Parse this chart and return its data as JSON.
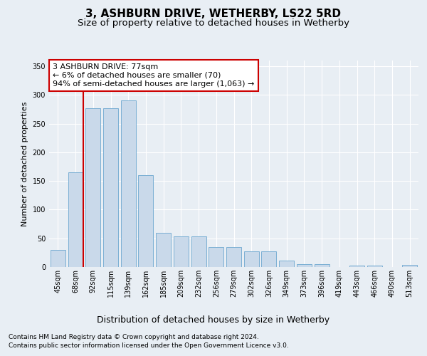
{
  "title": "3, ASHBURN DRIVE, WETHERBY, LS22 5RD",
  "subtitle": "Size of property relative to detached houses in Wetherby",
  "xlabel": "Distribution of detached houses by size in Wetherby",
  "ylabel": "Number of detached properties",
  "categories": [
    "45sqm",
    "68sqm",
    "92sqm",
    "115sqm",
    "139sqm",
    "162sqm",
    "185sqm",
    "209sqm",
    "232sqm",
    "256sqm",
    "279sqm",
    "302sqm",
    "326sqm",
    "349sqm",
    "373sqm",
    "396sqm",
    "419sqm",
    "443sqm",
    "466sqm",
    "490sqm",
    "513sqm"
  ],
  "values": [
    30,
    165,
    277,
    277,
    290,
    160,
    59,
    53,
    53,
    35,
    35,
    27,
    27,
    11,
    5,
    5,
    0,
    3,
    3,
    0,
    4
  ],
  "bar_color": "#c9d9ea",
  "bar_edge_color": "#7bafd4",
  "highlight_line_color": "#cc0000",
  "annotation_text": "3 ASHBURN DRIVE: 77sqm\n← 6% of detached houses are smaller (70)\n94% of semi-detached houses are larger (1,063) →",
  "annotation_box_color": "#ffffff",
  "annotation_box_edge_color": "#cc0000",
  "ylim": [
    0,
    360
  ],
  "yticks": [
    0,
    50,
    100,
    150,
    200,
    250,
    300,
    350
  ],
  "background_color": "#e8eef4",
  "plot_background_color": "#e8eef4",
  "grid_color": "#ffffff",
  "footer_line1": "Contains HM Land Registry data © Crown copyright and database right 2024.",
  "footer_line2": "Contains public sector information licensed under the Open Government Licence v3.0.",
  "title_fontsize": 11,
  "subtitle_fontsize": 9.5,
  "xlabel_fontsize": 9,
  "ylabel_fontsize": 8,
  "tick_fontsize": 7,
  "annot_fontsize": 8,
  "footer_fontsize": 6.5
}
